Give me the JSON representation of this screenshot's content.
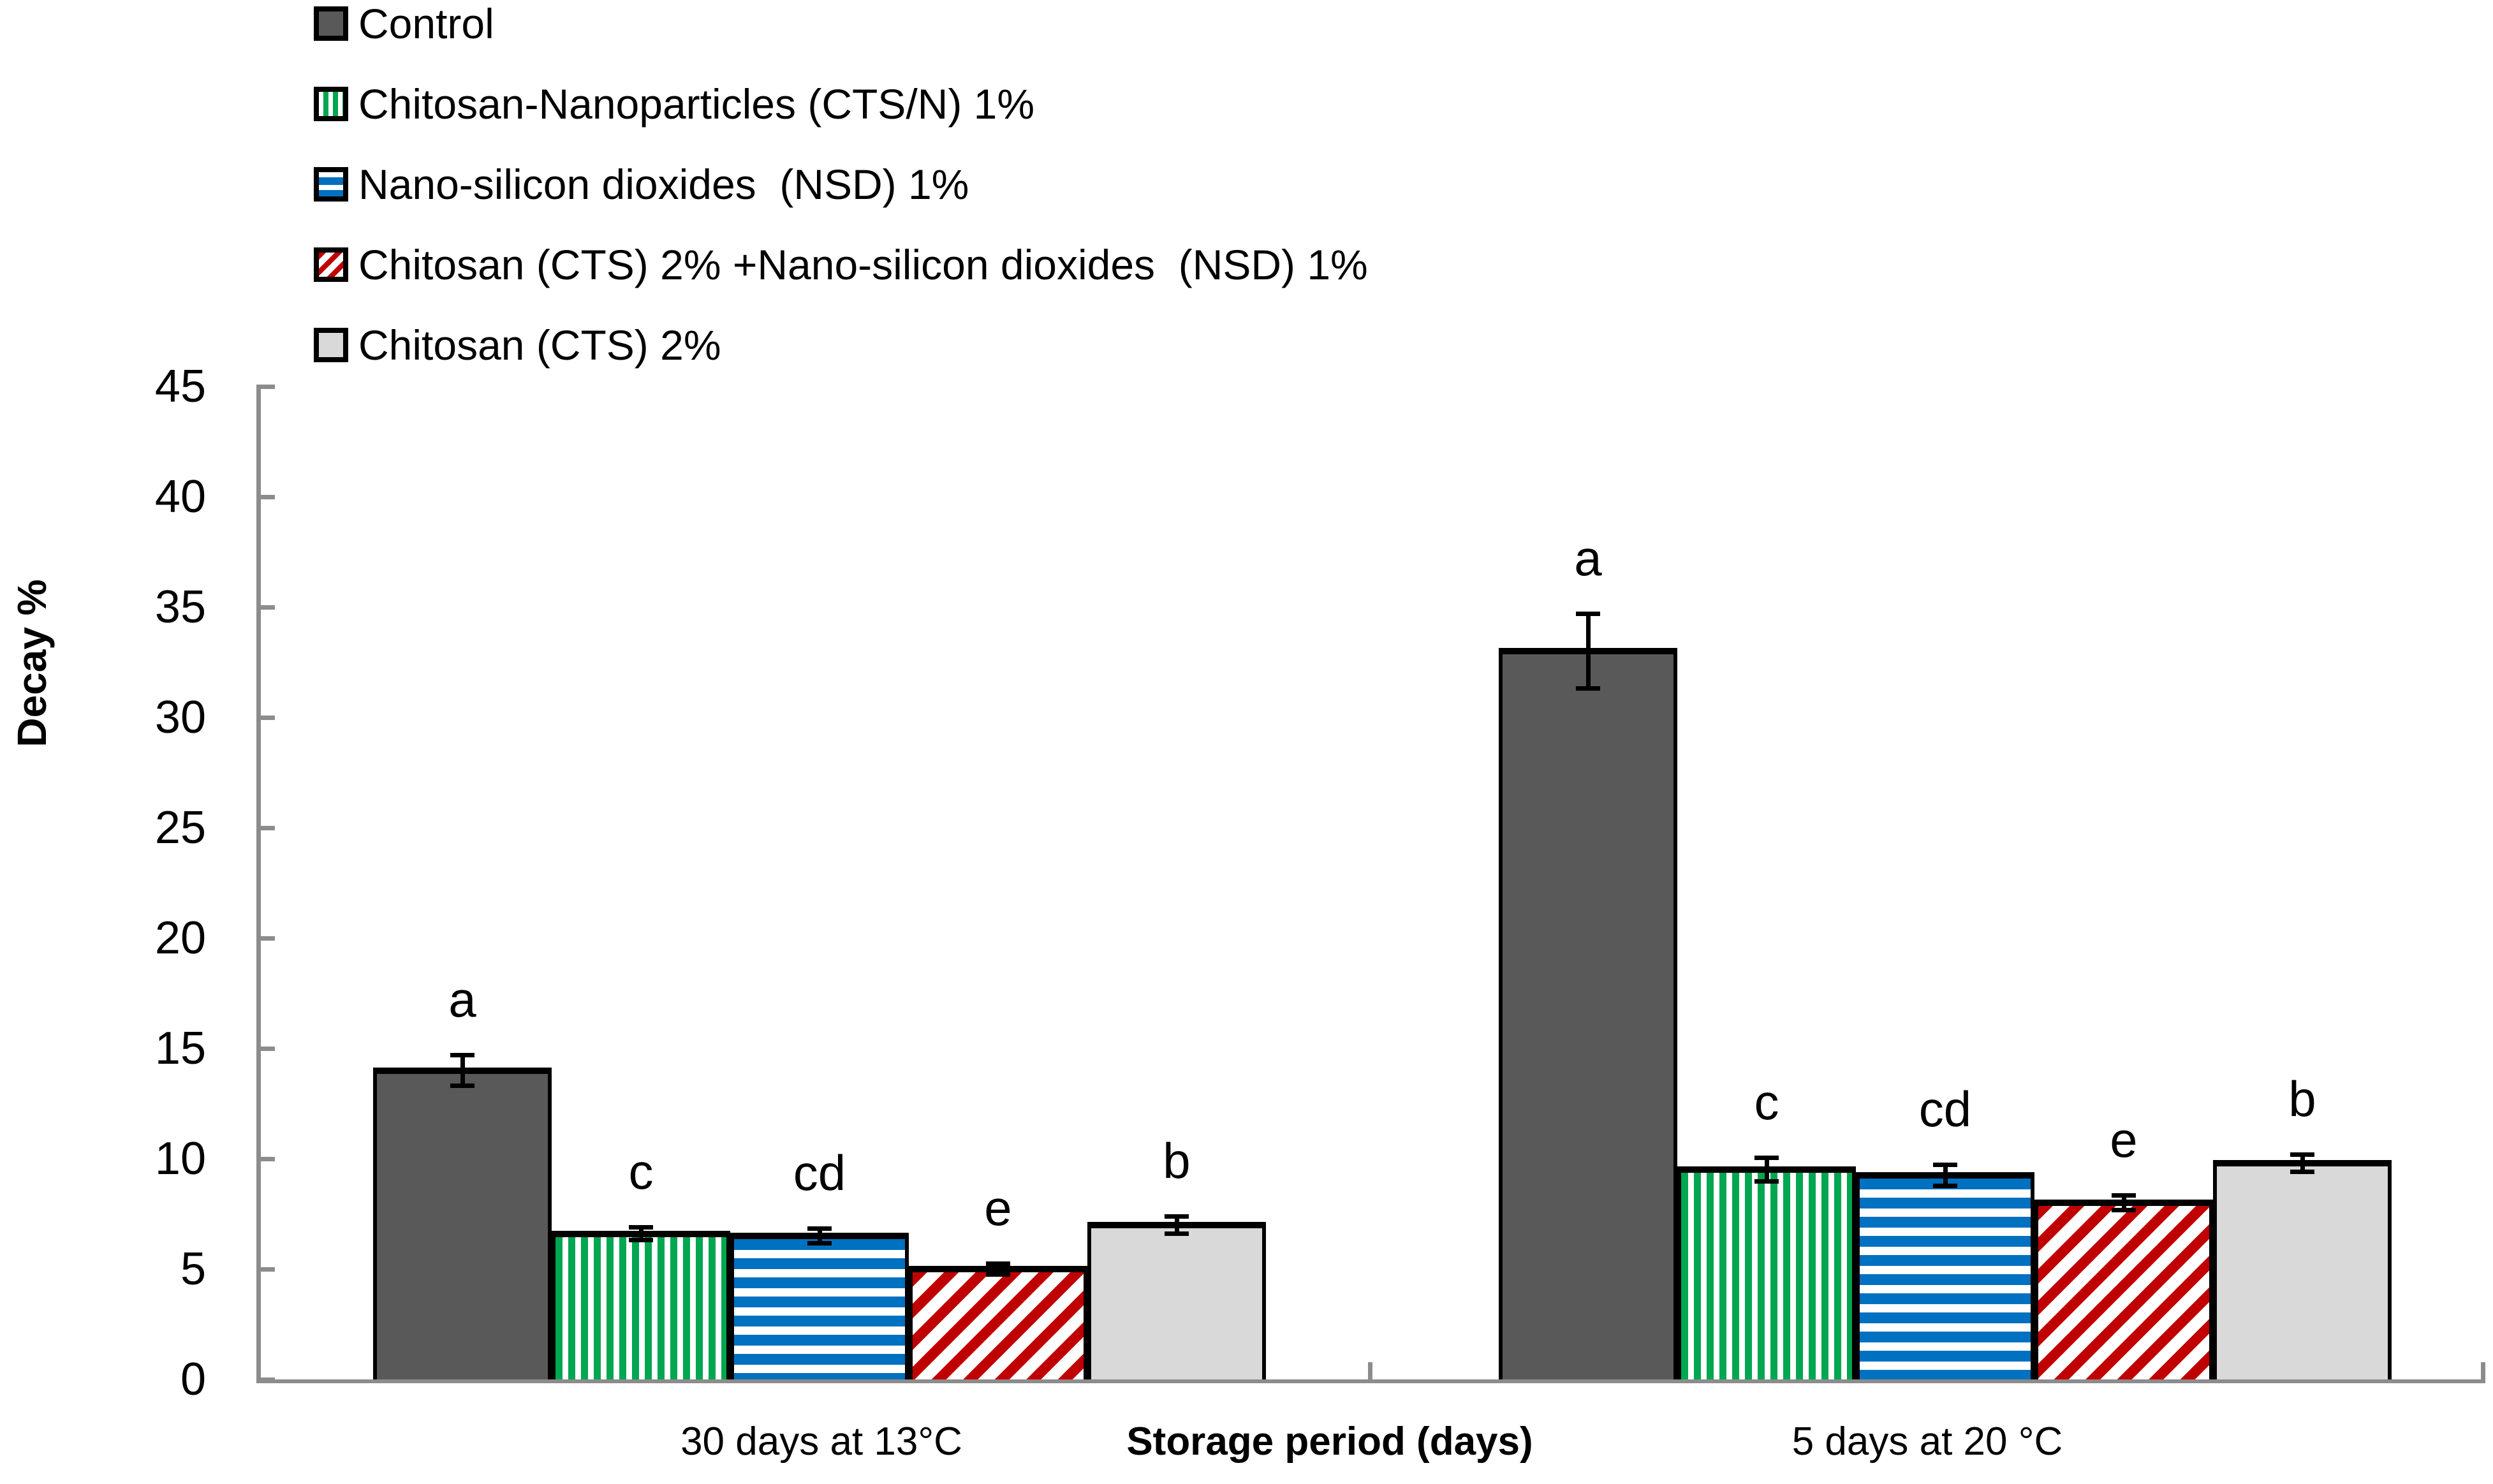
{
  "chart_data": {
    "type": "bar",
    "title": "",
    "ylabel": "Decay %",
    "xlabel": "Storage period (days)",
    "ylim": [
      0,
      45
    ],
    "ytick_step": 5,
    "yticks": [
      0,
      5,
      10,
      15,
      20,
      25,
      30,
      35,
      40,
      45
    ],
    "grid": false,
    "legend_position": "top-left",
    "axis_color": "#8C8C8C",
    "bar_border_color": "#000000",
    "categories": [
      "30 days at 13°C",
      "5 days at 20 °C"
    ],
    "series": [
      {
        "name": "Control",
        "style": "solid",
        "color": "#595959",
        "values": [
          14.0,
          33.0
        ],
        "errors": [
          0.7,
          1.7
        ],
        "sig_letters": [
          "a",
          "a"
        ]
      },
      {
        "name": "Chitosan-Nanoparticles (CTS/N) 1%",
        "style": "vertical-stripes",
        "color": "#00A650",
        "values": [
          6.6,
          9.5
        ],
        "errors": [
          0.3,
          0.55
        ],
        "sig_letters": [
          "c",
          "c"
        ]
      },
      {
        "name": "Nano-silicon dioxides  (NSD) 1%",
        "style": "horizontal-stripes",
        "color": "#0070C0",
        "values": [
          6.5,
          9.25
        ],
        "errors": [
          0.35,
          0.5
        ],
        "sig_letters": [
          "cd",
          "cd"
        ]
      },
      {
        "name": "Chitosan (CTS) 2% +Nano-silicon dioxides  (NSD) 1%",
        "style": "diagonal-stripes",
        "color": "#C00000",
        "values": [
          5.0,
          8.0
        ],
        "errors": [
          0.25,
          0.35
        ],
        "sig_letters": [
          "e",
          "e"
        ]
      },
      {
        "name": "Chitosan (CTS) 2%",
        "style": "solid",
        "color": "#D9D9D9",
        "values": [
          7.0,
          9.8
        ],
        "errors": [
          0.4,
          0.4
        ],
        "sig_letters": [
          "b",
          "b"
        ]
      }
    ]
  }
}
